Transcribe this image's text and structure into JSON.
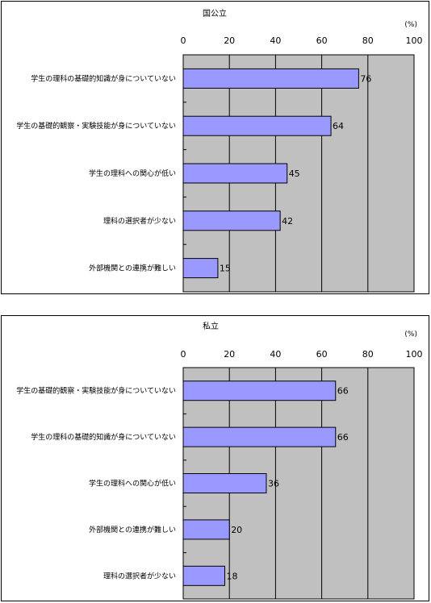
{
  "colors": {
    "plot_bg": "#c0c0c0",
    "bar_fill": "#9999ff",
    "bar_stroke": "#000000",
    "grid": "#000000",
    "panel_bg": "#ffffff"
  },
  "chart_data": [
    {
      "type": "bar",
      "orientation": "horizontal",
      "title": "国公立",
      "unit": "(%)",
      "xlabel": "",
      "ylabel": "",
      "xlim": [
        0,
        100
      ],
      "ticks": [
        "0",
        "20",
        "40",
        "60",
        "80",
        "100"
      ],
      "grid": true,
      "legend": "none",
      "categories": [
        "学生の理科の基礎的知識が身についていない",
        "学生の基礎的観察・実験技能が身についていない",
        "学生の理科への関心が低い",
        "理科の選択者が少ない",
        "外部機関との連携が難しい"
      ],
      "values": [
        76,
        64,
        45,
        42,
        15
      ]
    },
    {
      "type": "bar",
      "orientation": "horizontal",
      "title": "私立",
      "unit": "(%)",
      "xlabel": "",
      "ylabel": "",
      "xlim": [
        0,
        100
      ],
      "ticks": [
        "0",
        "20",
        "40",
        "60",
        "80",
        "100"
      ],
      "grid": true,
      "legend": "none",
      "categories": [
        "学生の基礎的観察・実験技能が身についていない",
        "学生の理科の基礎的知識が身についていない",
        "学生の理科への関心が低い",
        "外部機関との連携が難しい",
        "理科の選択者が少ない"
      ],
      "values": [
        66,
        66,
        36,
        20,
        18
      ]
    }
  ]
}
